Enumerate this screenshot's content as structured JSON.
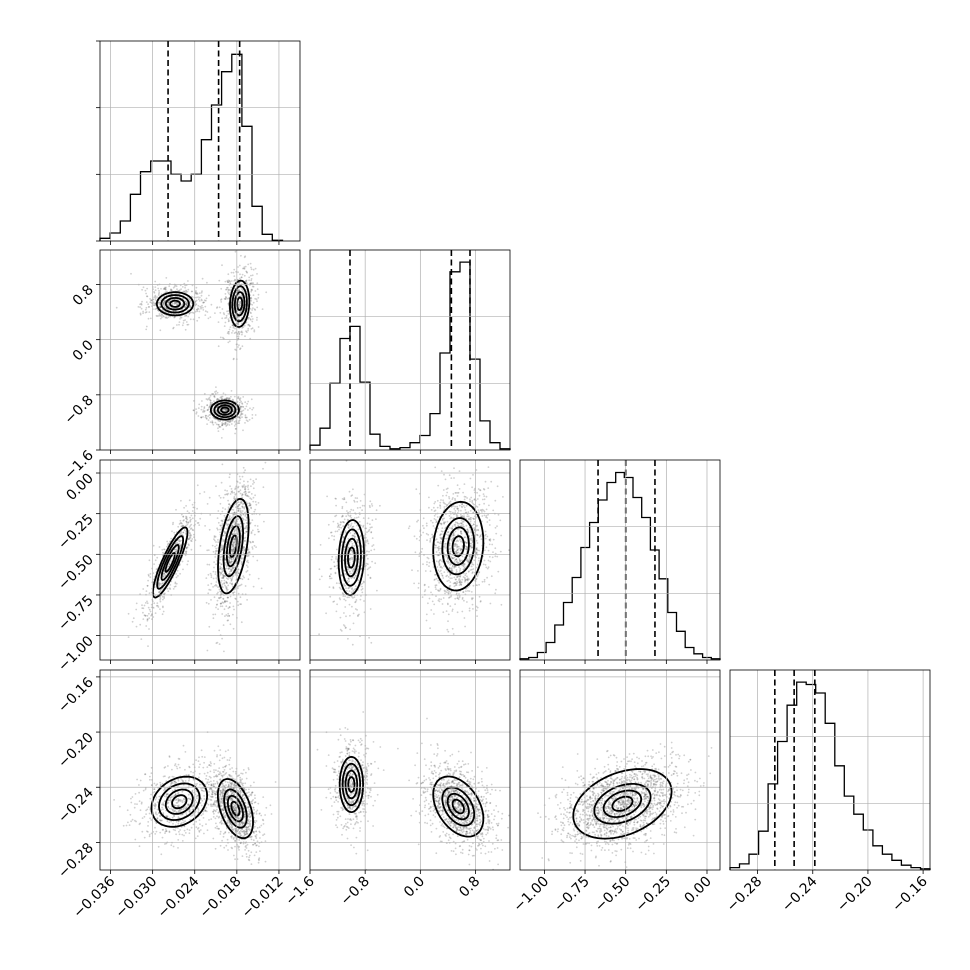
{
  "chart_data": {
    "type": "corner",
    "title": "",
    "grid": true,
    "colors": {
      "lines": "#000000",
      "grid": "#b0b0b0",
      "density": "#000000",
      "points": "#555555"
    },
    "parameters": [
      {
        "index": 0,
        "range": [
          -0.0375,
          -0.009
        ],
        "ticks": [
          -0.036,
          -0.03,
          -0.024,
          -0.018,
          -0.012
        ],
        "tick_labels": [
          "−0.036",
          "−0.030",
          "−0.024",
          "−0.018",
          "−0.012"
        ],
        "quantiles": [
          -0.0278,
          -0.0206,
          -0.0176
        ],
        "histogram": {
          "bin_edges_range": [
            -0.0375,
            -0.0115
          ],
          "counts": [
            0.2,
            0.6,
            1.5,
            3.5,
            5.2,
            6.0,
            6.0,
            5.0,
            4.5,
            5.0,
            7.6,
            10.2,
            12.7,
            14.0,
            8.6,
            2.6,
            0.5,
            0.05
          ],
          "ylim": [
            0,
            15
          ]
        },
        "clusters": [
          {
            "mean": -0.0273,
            "sd": 0.0016,
            "weight": 0.33
          },
          {
            "mean": -0.018,
            "sd": 0.0012,
            "weight": 0.67
          }
        ]
      },
      {
        "index": 1,
        "range": [
          -1.6,
          1.3
        ],
        "ticks": [
          -1.6,
          -0.8,
          0.0,
          0.8
        ],
        "tick_labels": [
          "−1.6",
          "−0.8",
          "0.0",
          "0.8"
        ],
        "quantiles": [
          -1.02,
          0.45,
          0.72
        ],
        "histogram": {
          "bin_edges_range": [
            -1.6,
            1.3
          ],
          "counts": [
            0.4,
            1.8,
            5.5,
            9.2,
            10.2,
            5.6,
            1.3,
            0.3,
            0.1,
            0.2,
            0.6,
            1.2,
            3.0,
            8.0,
            14.7,
            15.5,
            7.5,
            2.4,
            0.6,
            0.1
          ],
          "ylim": [
            0,
            16.5
          ]
        },
        "clusters": [
          {
            "mean": -1.0,
            "sd": 0.12,
            "weight": 0.34
          },
          {
            "mean": 0.58,
            "sd": 0.15,
            "weight": 0.66
          }
        ]
      },
      {
        "index": 2,
        "range": [
          -1.15,
          0.08
        ],
        "ticks": [
          -1.0,
          -0.75,
          -0.5,
          -0.25,
          0.0
        ],
        "tick_labels": [
          "−1.00",
          "−0.75",
          "−0.50",
          "−0.25",
          "0.00"
        ],
        "quantiles": [
          -0.67,
          -0.5,
          -0.32
        ],
        "histogram": {
          "bin_edges_range": [
            -1.15,
            0.08
          ],
          "counts": [
            0.1,
            0.2,
            0.6,
            1.4,
            2.8,
            4.6,
            6.6,
            9.0,
            11.0,
            12.8,
            14.2,
            15.0,
            14.6,
            13.0,
            11.4,
            8.8,
            6.5,
            3.8,
            2.3,
            1.0,
            0.5,
            0.2,
            0.1
          ],
          "ylim": [
            0,
            16
          ]
        },
        "clusters": [
          {
            "mean": -0.5,
            "sd": 0.16,
            "weight": 1.0
          }
        ]
      },
      {
        "index": 3,
        "range": [
          -0.3,
          -0.155
        ],
        "ticks": [
          -0.28,
          -0.24,
          -0.2,
          -0.16
        ],
        "tick_labels": [
          "−0.28",
          "−0.24",
          "−0.20",
          "−0.16"
        ],
        "quantiles": [
          -0.2675,
          -0.2535,
          -0.2385
        ],
        "histogram": {
          "bin_edges_range": [
            -0.3,
            -0.155
          ],
          "counts": [
            0.2,
            0.5,
            1.3,
            3.2,
            7.1,
            10.6,
            13.6,
            15.5,
            15.3,
            14.6,
            12.1,
            8.6,
            6.1,
            4.6,
            3.3,
            2.0,
            1.3,
            0.8,
            0.4,
            0.2,
            0.1
          ],
          "ylim": [
            0,
            16.5
          ]
        },
        "clusters": [
          {
            "mean": -0.2535,
            "sd": 0.0118,
            "weight": 1.0
          }
        ]
      }
    ],
    "pair_panels": [
      {
        "x": 0,
        "y": 1,
        "modes": [
          {
            "cx": -0.0268,
            "cy": 0.52,
            "sx": 0.0017,
            "sy": 0.11,
            "rho": 0.0,
            "w": 0.33
          },
          {
            "cx": -0.0176,
            "cy": 0.52,
            "sx": 0.0009,
            "sy": 0.22,
            "rho": 0.1,
            "w": 0.33
          },
          {
            "cx": -0.0197,
            "cy": -1.02,
            "sx": 0.0013,
            "sy": 0.09,
            "rho": 0.0,
            "w": 0.34
          }
        ]
      },
      {
        "x": 0,
        "y": 2,
        "modes": [
          {
            "cx": -0.0275,
            "cy": -0.55,
            "sx": 0.0016,
            "sy": 0.14,
            "rho": 0.86,
            "w": 0.34
          },
          {
            "cx": -0.0185,
            "cy": -0.45,
            "sx": 0.0012,
            "sy": 0.16,
            "rho": 0.45,
            "w": 0.66
          }
        ]
      },
      {
        "x": 0,
        "y": 3,
        "modes": [
          {
            "cx": -0.0262,
            "cy": -0.2505,
            "sx": 0.0025,
            "sy": 0.0115,
            "rho": 0.25,
            "w": 0.38
          },
          {
            "cx": -0.0182,
            "cy": -0.2555,
            "sx": 0.0014,
            "sy": 0.012,
            "rho": -0.45,
            "w": 0.62
          }
        ]
      },
      {
        "x": 1,
        "y": 2,
        "modes": [
          {
            "cx": -1.0,
            "cy": -0.52,
            "sx": 0.12,
            "sy": 0.15,
            "rho": 0.1,
            "w": 0.34
          },
          {
            "cx": 0.55,
            "cy": -0.45,
            "sx": 0.2,
            "sy": 0.15,
            "rho": 0.1,
            "w": 0.66
          }
        ]
      },
      {
        "x": 1,
        "y": 3,
        "modes": [
          {
            "cx": -1.0,
            "cy": -0.238,
            "sx": 0.11,
            "sy": 0.013,
            "rho": 0.0,
            "w": 0.34
          },
          {
            "cx": 0.55,
            "cy": -0.254,
            "sx": 0.2,
            "sy": 0.012,
            "rho": -0.4,
            "w": 0.66
          }
        ]
      },
      {
        "x": 2,
        "y": 3,
        "modes": [
          {
            "cx": -0.52,
            "cy": -0.252,
            "sx": 0.15,
            "sy": 0.0125,
            "rho": 0.35,
            "w": 1.0
          }
        ]
      }
    ]
  }
}
